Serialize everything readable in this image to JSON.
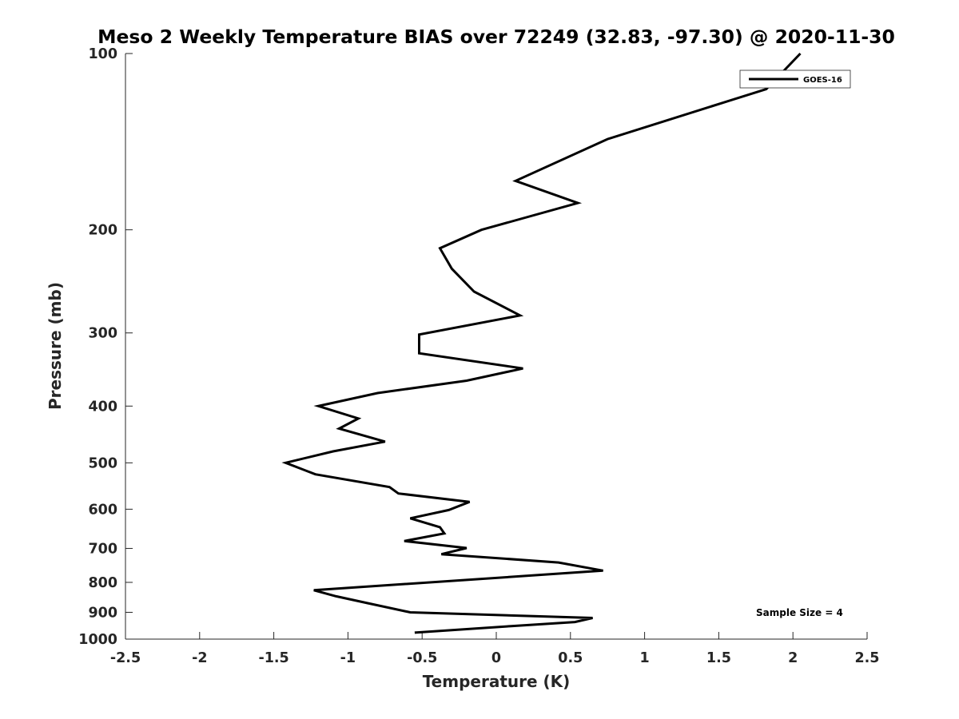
{
  "chart_data": {
    "type": "line",
    "title": "Meso 2 Weekly Temperature BIAS over 72249 (32.83, -97.30) @ 2020-11-30",
    "xlabel": "Temperature (K)",
    "ylabel": "Pressure (mb)",
    "xlim": [
      -2.5,
      2.5
    ],
    "ylim": [
      100,
      1000
    ],
    "y_scale": "log",
    "y_reversed": true,
    "grid": false,
    "legend_position": "top-right",
    "xticks": [
      "-2.5",
      "-2",
      "-1.5",
      "-1",
      "-0.5",
      "0",
      "0.5",
      "1",
      "1.5",
      "2",
      "2.5"
    ],
    "xtick_values": [
      -2.5,
      -2,
      -1.5,
      -1,
      -0.5,
      0,
      0.5,
      1,
      1.5,
      2,
      2.5
    ],
    "yticks": [
      "100",
      "200",
      "300",
      "400",
      "500",
      "600",
      "700",
      "800",
      "900",
      "1000"
    ],
    "ytick_values": [
      100,
      200,
      300,
      400,
      500,
      600,
      700,
      800,
      900,
      1000
    ],
    "series": [
      {
        "name": "GOES-16",
        "color": "#000000",
        "points": [
          [
            2.05,
            100
          ],
          [
            1.82,
            115
          ],
          [
            0.75,
            140
          ],
          [
            0.13,
            165
          ],
          [
            0.55,
            180
          ],
          [
            -0.1,
            200
          ],
          [
            -0.38,
            215
          ],
          [
            -0.3,
            233
          ],
          [
            -0.15,
            255
          ],
          [
            0.16,
            280
          ],
          [
            -0.52,
            302
          ],
          [
            -0.52,
            325
          ],
          [
            0.18,
            345
          ],
          [
            -0.2,
            362
          ],
          [
            -0.8,
            380
          ],
          [
            -1.2,
            400
          ],
          [
            -0.93,
            420
          ],
          [
            -1.06,
            437
          ],
          [
            -0.75,
            460
          ],
          [
            -1.1,
            478
          ],
          [
            -1.42,
            500
          ],
          [
            -1.22,
            523
          ],
          [
            -0.72,
            550
          ],
          [
            -0.66,
            564
          ],
          [
            -0.18,
            583
          ],
          [
            -0.32,
            602
          ],
          [
            -0.58,
            622
          ],
          [
            -0.38,
            644
          ],
          [
            -0.35,
            660
          ],
          [
            -0.62,
            680
          ],
          [
            -0.2,
            699
          ],
          [
            -0.37,
            716
          ],
          [
            0.42,
            740
          ],
          [
            0.72,
            764
          ],
          [
            -1.23,
            825
          ],
          [
            -1.08,
            845
          ],
          [
            -0.87,
            868
          ],
          [
            -0.58,
            900
          ],
          [
            0.65,
            920
          ],
          [
            0.53,
            935
          ],
          [
            0.1,
            950
          ],
          [
            -0.55,
            975
          ]
        ]
      }
    ],
    "annotation": "Sample Size = 4"
  }
}
